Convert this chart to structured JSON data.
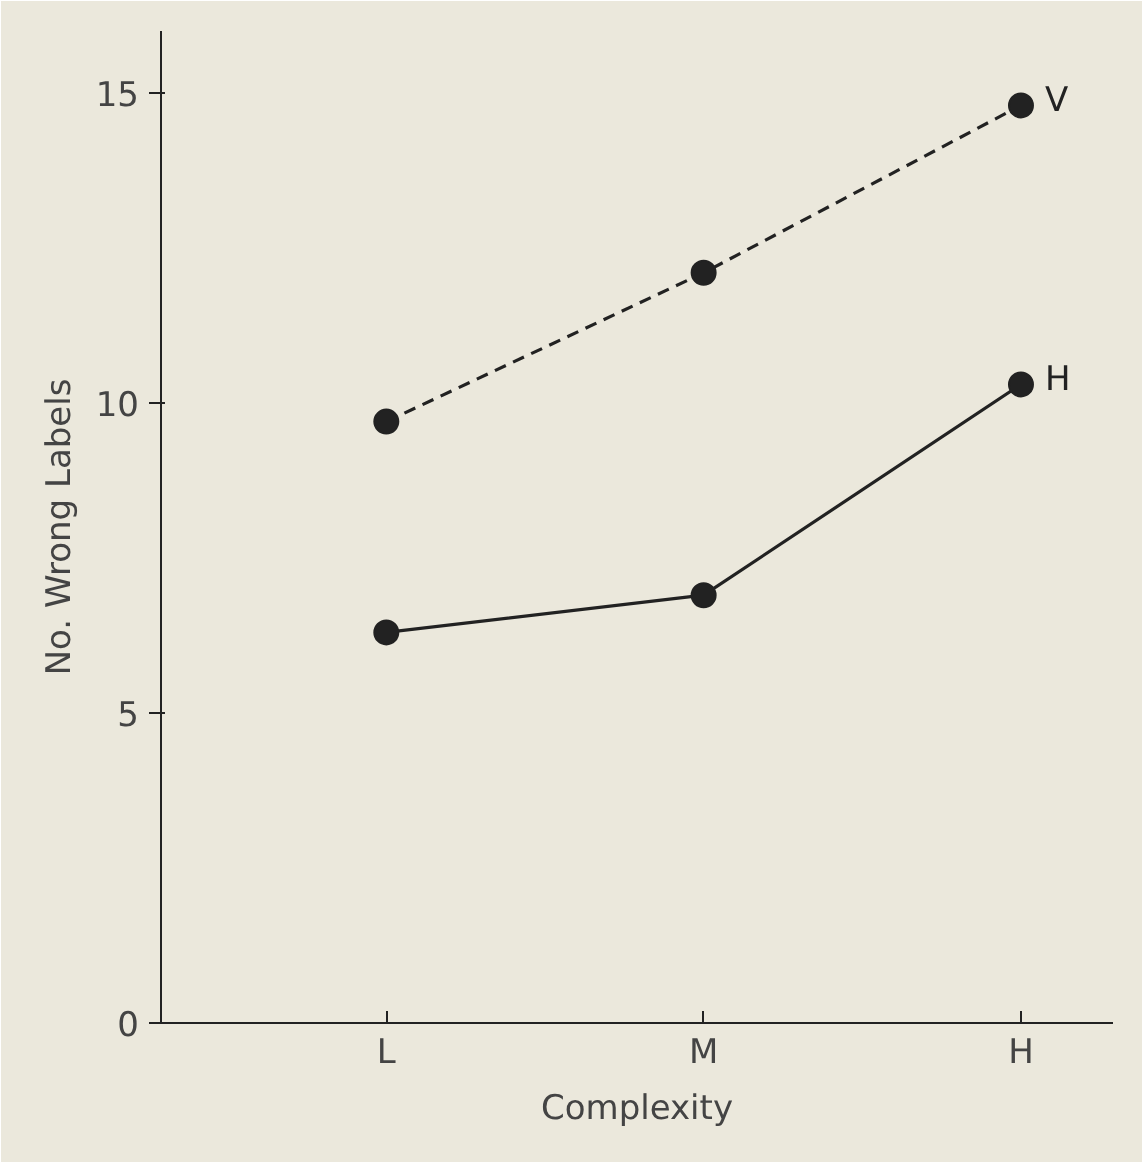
{
  "chart_data": {
    "type": "line",
    "xlabel": "Complexity",
    "ylabel": "No. Wrong Labels",
    "categories": [
      "L",
      "M",
      "H"
    ],
    "ylim": [
      0,
      16
    ],
    "yticks": [
      0,
      5,
      10,
      15
    ],
    "grid": false,
    "legend": false,
    "marker": "circle",
    "series": [
      {
        "name": "V",
        "color": "#222222",
        "values": [
          9.7,
          12.1,
          14.8
        ],
        "line_style": "dashed"
      },
      {
        "name": "H",
        "color": "#222222",
        "values": [
          6.3,
          6.9,
          10.3
        ],
        "line_style": "solid"
      }
    ]
  }
}
